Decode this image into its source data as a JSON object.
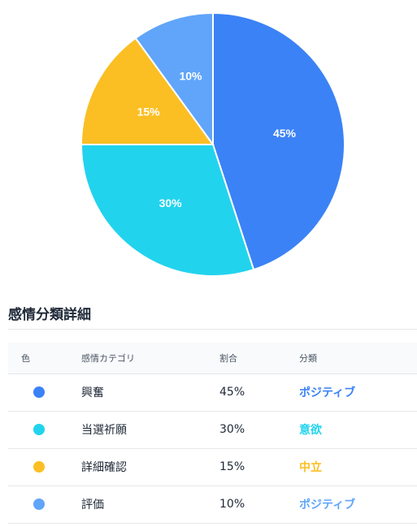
{
  "chart_data": {
    "type": "pie",
    "categories": [
      "興奮",
      "当選祈願",
      "詳細確認",
      "評価"
    ],
    "values": [
      45,
      30,
      15,
      10
    ],
    "slice_labels": [
      "45%",
      "30%",
      "15%",
      "10%"
    ],
    "colors": [
      "#3b82f6",
      "#22d3ee",
      "#fbbf24",
      "#60a5fa"
    ]
  },
  "details": {
    "title": "感情分類詳細",
    "headers": {
      "color": "色",
      "emotion": "感情カテゴリ",
      "ratio": "割合",
      "classification": "分類"
    },
    "rows": [
      {
        "color": "#3b82f6",
        "emotion": "興奮",
        "ratio": "45%",
        "classification": "ポジティブ",
        "class_color": "#3b82f6"
      },
      {
        "color": "#22d3ee",
        "emotion": "当選祈願",
        "ratio": "30%",
        "classification": "意欲",
        "class_color": "#22d3ee"
      },
      {
        "color": "#fbbf24",
        "emotion": "詳細確認",
        "ratio": "15%",
        "classification": "中立",
        "class_color": "#fbbf24"
      },
      {
        "color": "#60a5fa",
        "emotion": "評価",
        "ratio": "10%",
        "classification": "ポジティブ",
        "class_color": "#60a5fa"
      }
    ]
  }
}
